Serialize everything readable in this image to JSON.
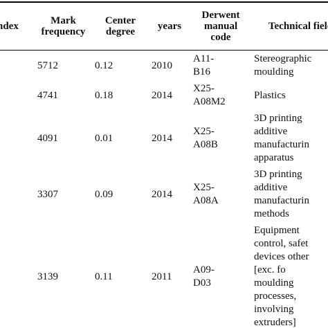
{
  "table": {
    "headers": [
      "ndex",
      "Mark frequency",
      "Center degree",
      "years",
      "Derwent manual code",
      "Technical field"
    ],
    "rows": [
      {
        "frequency": "5712",
        "degree": "0.12",
        "year": "2010",
        "code": [
          "A11-",
          "B16"
        ],
        "field": [
          "Stereographic",
          "moulding"
        ]
      },
      {
        "frequency": "4741",
        "degree": "0.18",
        "year": "2014",
        "code": [
          "X25-",
          "A08M2"
        ],
        "field": [
          "Plastics"
        ]
      },
      {
        "frequency": "4091",
        "degree": "0.01",
        "year": "2014",
        "code": [
          "X25-",
          "A08B"
        ],
        "field": [
          "3D printing",
          "additive",
          "manufacturin",
          "apparatus"
        ]
      },
      {
        "frequency": "3307",
        "degree": "0.09",
        "year": "2014",
        "code": [
          "X25-",
          "A08A"
        ],
        "field": [
          "3D printing",
          "additive",
          "manufacturin",
          "methods"
        ]
      },
      {
        "frequency": "3139",
        "degree": "0.11",
        "year": "2011",
        "code": [
          "A09-",
          "D03"
        ],
        "field": [
          "Equipment",
          "control, safet",
          "devices other",
          "[exc.        fo",
          "moulding",
          "processes,",
          "involving",
          "extruders]"
        ]
      }
    ]
  }
}
